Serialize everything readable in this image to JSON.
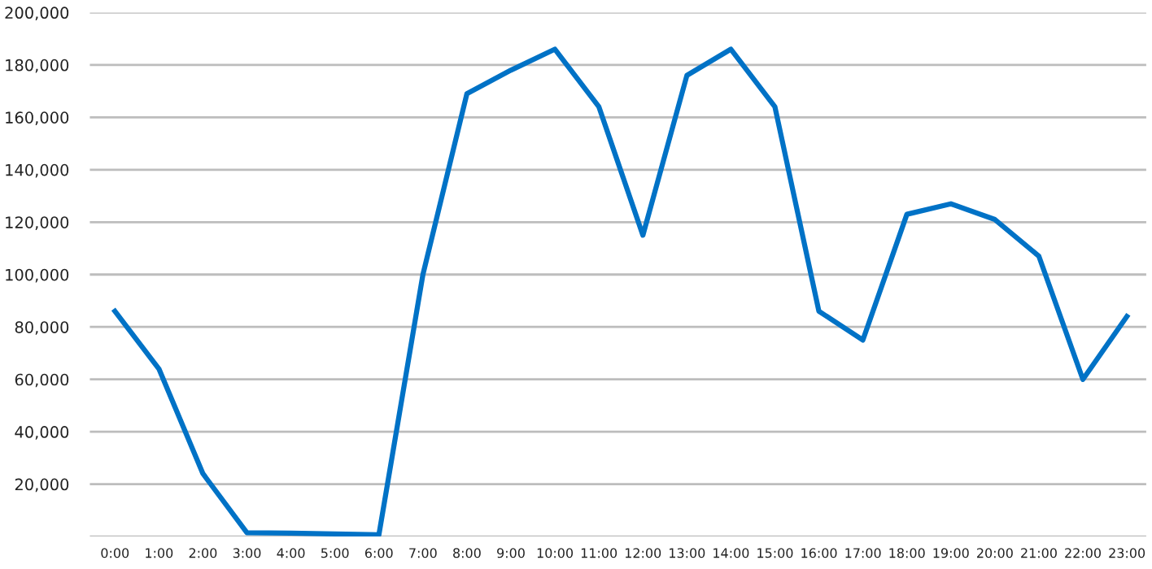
{
  "chart_data": {
    "type": "line",
    "categories": [
      "0:00",
      "1:00",
      "2:00",
      "3:00",
      "4:00",
      "5:00",
      "6:00",
      "7:00",
      "8:00",
      "9:00",
      "10:00",
      "11:00",
      "12:00",
      "13:00",
      "14:00",
      "15:00",
      "16:00",
      "17:00",
      "18:00",
      "19:00",
      "20:00",
      "21:00",
      "22:00",
      "23:00"
    ],
    "series": [
      {
        "color": "#0072c6",
        "values": [
          86000,
          64000,
          24000,
          1500,
          1300,
          1000,
          700,
          100000,
          169000,
          178000,
          186000,
          164000,
          115000,
          176000,
          186000,
          164000,
          86000,
          75000,
          123000,
          127000,
          121000,
          107000,
          60000,
          84000
        ]
      }
    ],
    "ylim": [
      0,
      200000
    ],
    "yticks": [
      {
        "value": 0,
        "label": null
      },
      {
        "value": 20000,
        "label": "20,000"
      },
      {
        "value": 40000,
        "label": "40,000"
      },
      {
        "value": 60000,
        "label": "60,000"
      },
      {
        "value": 80000,
        "label": "80,000"
      },
      {
        "value": 100000,
        "label": "100,000"
      },
      {
        "value": 120000,
        "label": "120,000"
      },
      {
        "value": 140000,
        "label": "140,000"
      },
      {
        "value": 160000,
        "label": "160,000"
      },
      {
        "value": 180000,
        "label": "180,000"
      },
      {
        "value": 200000,
        "label": "200,000"
      }
    ],
    "grid": "y",
    "marker": "none",
    "line_style": "solid",
    "legend": false
  }
}
